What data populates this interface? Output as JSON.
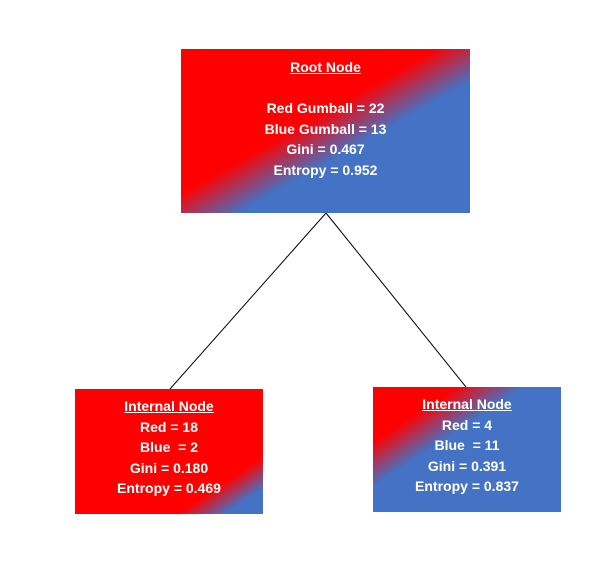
{
  "root": {
    "title": "Root Node",
    "lines": [
      "Red Gumball = 22",
      "Blue Gumball = 13",
      "Gini = 0.467",
      "Entropy = 0.952"
    ],
    "colors": {
      "red": "#ff0000",
      "blue": "#4472c4"
    }
  },
  "left": {
    "title": "Internal Node",
    "lines": [
      "Red = 18",
      "Blue  = 2",
      "Gini = 0.180",
      "Entropy = 0.469"
    ]
  },
  "right": {
    "title": "Internal Node",
    "lines": [
      "Red = 4",
      "Blue  = 11",
      "Gini = 0.391",
      "Entropy = 0.837"
    ]
  },
  "edge_color": "#000000",
  "text_color": "#ffffff"
}
